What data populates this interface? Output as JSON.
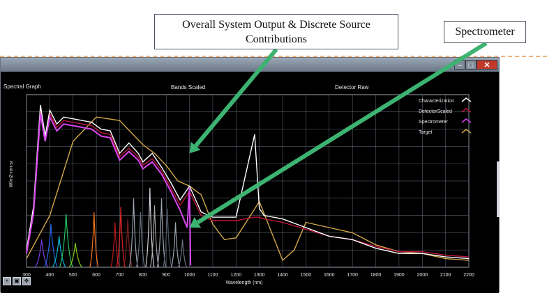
{
  "callouts": {
    "system_output": "Overall System Output & Discrete Source Contributions",
    "spectrometer": "Spectrometer"
  },
  "window": {
    "header_left": "Spectral Graph",
    "header_center": "Bands Scaled",
    "header_right": "Detector Raw",
    "controls": {
      "minimize": "–",
      "maximize": "□",
      "close": "✕"
    }
  },
  "colors": {
    "characterization": "#ffffff",
    "detector_scaled": "#c0143c",
    "spectrometer": "#d946ef",
    "target": "#d4a84a",
    "arrow": "#3cb371"
  },
  "chart_data": {
    "type": "line",
    "title": "",
    "xlabel": "Wavelength (nm)",
    "ylabel": "W/m2-nm-sr",
    "xlim": [
      300,
      2200
    ],
    "x_ticks": [
      300,
      400,
      500,
      600,
      700,
      800,
      900,
      1000,
      1100,
      1200,
      1300,
      1400,
      1500,
      1600,
      1700,
      1800,
      1900,
      2000,
      2100,
      2200
    ],
    "ylim": [
      0,
      10
    ],
    "grid": true,
    "legend_position": "top-right",
    "series": [
      {
        "name": "Characterization",
        "color": "#ffffff",
        "x": [
          300,
          330,
          360,
          380,
          400,
          430,
          460,
          500,
          540,
          580,
          620,
          660,
          700,
          740,
          780,
          800,
          840,
          880,
          920,
          960,
          1000,
          1050,
          1100,
          1200,
          1280,
          1300,
          1320,
          1400,
          1500,
          1600,
          1700,
          1800,
          1900,
          2000,
          2100,
          2200
        ],
        "y": [
          1.0,
          3.5,
          9.4,
          7.6,
          9.1,
          8.3,
          8.7,
          8.6,
          8.5,
          8.4,
          8.0,
          7.9,
          6.6,
          7.2,
          6.6,
          6.1,
          6.6,
          5.8,
          4.9,
          3.9,
          4.7,
          3.2,
          2.9,
          2.9,
          7.7,
          3.4,
          3.0,
          2.8,
          2.3,
          1.8,
          1.6,
          1.1,
          0.8,
          0.8,
          0.6,
          0.5
        ]
      },
      {
        "name": "DetectorScaled",
        "color": "#c0143c",
        "x": [
          300,
          330,
          360,
          380,
          400,
          430,
          460,
          500,
          540,
          580,
          620,
          660,
          700,
          740,
          780,
          800,
          840,
          880,
          920,
          960,
          1000,
          1050,
          1100,
          1200,
          1280,
          1300,
          1320,
          1400,
          1500,
          1600,
          1700,
          1800,
          1900,
          2000,
          2100,
          2200
        ],
        "y": [
          1.0,
          3.3,
          9.1,
          7.4,
          8.9,
          8.1,
          8.5,
          8.4,
          8.3,
          8.2,
          7.8,
          7.7,
          6.4,
          6.9,
          6.4,
          5.9,
          6.3,
          5.6,
          4.6,
          3.6,
          4.4,
          3.0,
          2.7,
          2.7,
          2.9,
          2.9,
          2.8,
          2.6,
          2.2,
          1.8,
          1.6,
          1.2,
          0.9,
          0.9,
          0.7,
          0.6
        ]
      },
      {
        "name": "Spectrometer",
        "color": "#d946ef",
        "x": [
          300,
          330,
          360,
          380,
          400,
          430,
          460,
          500,
          540,
          580,
          620,
          660,
          700,
          740,
          780,
          800,
          840,
          880,
          920,
          960,
          990,
          1000,
          1005
        ],
        "y": [
          0.8,
          3.1,
          8.9,
          7.3,
          8.7,
          7.9,
          8.3,
          8.2,
          8.1,
          8.0,
          7.6,
          7.5,
          6.2,
          6.7,
          6.2,
          5.7,
          6.1,
          5.4,
          4.4,
          3.3,
          2.3,
          4.6,
          0.1
        ]
      },
      {
        "name": "Target",
        "color": "#d4a84a",
        "x": [
          300,
          400,
          500,
          600,
          700,
          750,
          800,
          850,
          900,
          950,
          1000,
          1050,
          1100,
          1150,
          1200,
          1300,
          1400,
          1450,
          1500,
          1600,
          1700,
          1800,
          1900,
          2000,
          2100,
          2200
        ],
        "y": [
          0.5,
          3.0,
          7.3,
          8.7,
          8.5,
          7.8,
          7.1,
          6.6,
          5.9,
          5.0,
          4.7,
          4.2,
          2.5,
          1.6,
          1.7,
          3.8,
          0.4,
          1.0,
          2.6,
          2.3,
          2.0,
          1.3,
          0.9,
          0.8,
          0.5,
          0.4
        ]
      }
    ],
    "band_peaks_nm": [
      365,
      405,
      440,
      470,
      510,
      590,
      680,
      705,
      735,
      760,
      790,
      830,
      850,
      880,
      905,
      940,
      970
    ],
    "band_peak_values": [
      1.6,
      2.5,
      1.8,
      3.1,
      1.4,
      3.2,
      2.6,
      3.5,
      2.8,
      4.0,
      3.2,
      4.6,
      3.6,
      4.0,
      3.4,
      2.6,
      1.6
    ]
  }
}
